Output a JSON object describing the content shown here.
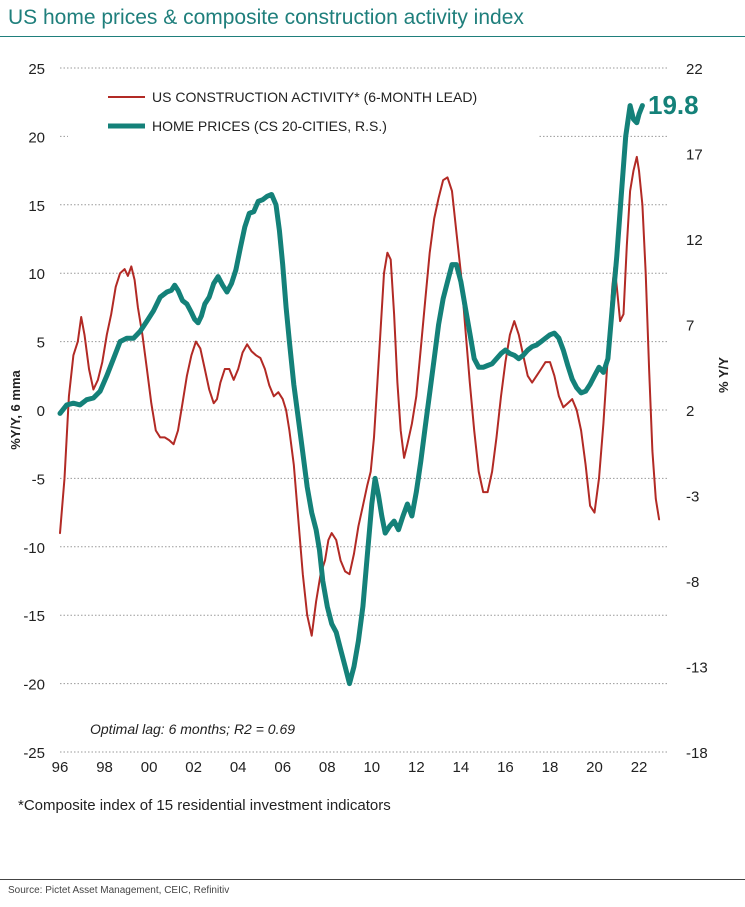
{
  "title": "US home prices & composite construction activity index",
  "footnote": "*Composite index of 15 residential investment indicators",
  "source": "Source: Pictet Asset Management, CEIC, Refinitiv",
  "annotation": "Optimal lag: 6 months;  R2 = 0.69",
  "callout": "19.8",
  "colors": {
    "construction": "#b22a25",
    "home_prices": "#148179",
    "callout": "#148179",
    "title": "#1f7f7c",
    "grid": "#9a9a9a"
  },
  "chart_data": {
    "type": "line",
    "ylabel_left": "%Y/Y, 6 mma",
    "ylabel_right": "% Y/Y",
    "ylim_left": [
      -25,
      25
    ],
    "ylim_right": [
      -18,
      22
    ],
    "yticks_left": [
      25,
      20,
      15,
      10,
      5,
      0,
      -5,
      -10,
      -15,
      -20,
      -25
    ],
    "yticks_right": [
      22,
      17,
      12,
      7,
      2,
      -3,
      -8,
      -13,
      -18
    ],
    "xlim": [
      1996,
      2023.3
    ],
    "xticks": [
      "96",
      "98",
      "00",
      "02",
      "04",
      "06",
      "08",
      "10",
      "12",
      "14",
      "16",
      "18",
      "20",
      "22"
    ],
    "grid": "horizontal",
    "legend_position": "top-left",
    "series": [
      {
        "name": "US CONSTRUCTION ACTIVITY* (6-MONTH LEAD)",
        "axis": "left",
        "points": [
          [
            1996.0,
            -9.0
          ],
          [
            1996.2,
            -5.0
          ],
          [
            1996.4,
            1.0
          ],
          [
            1996.6,
            4.0
          ],
          [
            1996.8,
            5.0
          ],
          [
            1996.95,
            6.8
          ],
          [
            1997.1,
            5.5
          ],
          [
            1997.3,
            3.0
          ],
          [
            1997.5,
            1.5
          ],
          [
            1997.7,
            2.2
          ],
          [
            1997.9,
            3.5
          ],
          [
            1998.1,
            5.5
          ],
          [
            1998.3,
            7.0
          ],
          [
            1998.5,
            9.0
          ],
          [
            1998.7,
            10.0
          ],
          [
            1998.9,
            10.3
          ],
          [
            1999.05,
            9.8
          ],
          [
            1999.2,
            10.5
          ],
          [
            1999.35,
            9.5
          ],
          [
            1999.5,
            7.5
          ],
          [
            1999.7,
            5.5
          ],
          [
            1999.9,
            3.0
          ],
          [
            2000.1,
            0.5
          ],
          [
            2000.3,
            -1.5
          ],
          [
            2000.5,
            -2.0
          ],
          [
            2000.7,
            -2.0
          ],
          [
            2000.9,
            -2.2
          ],
          [
            2001.1,
            -2.5
          ],
          [
            2001.3,
            -1.5
          ],
          [
            2001.5,
            0.5
          ],
          [
            2001.7,
            2.5
          ],
          [
            2001.9,
            4.0
          ],
          [
            2002.1,
            5.0
          ],
          [
            2002.3,
            4.5
          ],
          [
            2002.5,
            3.0
          ],
          [
            2002.7,
            1.5
          ],
          [
            2002.9,
            0.5
          ],
          [
            2003.05,
            0.8
          ],
          [
            2003.2,
            2.0
          ],
          [
            2003.4,
            3.0
          ],
          [
            2003.6,
            3.0
          ],
          [
            2003.8,
            2.2
          ],
          [
            2004.0,
            3.0
          ],
          [
            2004.2,
            4.2
          ],
          [
            2004.4,
            4.8
          ],
          [
            2004.6,
            4.3
          ],
          [
            2004.8,
            4.0
          ],
          [
            2005.0,
            3.8
          ],
          [
            2005.2,
            3.0
          ],
          [
            2005.4,
            1.8
          ],
          [
            2005.6,
            1.0
          ],
          [
            2005.8,
            1.3
          ],
          [
            2006.0,
            0.8
          ],
          [
            2006.15,
            0.0
          ],
          [
            2006.3,
            -1.5
          ],
          [
            2006.5,
            -4.0
          ],
          [
            2006.7,
            -8.0
          ],
          [
            2006.9,
            -12.0
          ],
          [
            2007.1,
            -15.0
          ],
          [
            2007.3,
            -16.5
          ],
          [
            2007.5,
            -14.0
          ],
          [
            2007.7,
            -12.0
          ],
          [
            2007.9,
            -11.0
          ],
          [
            2008.05,
            -9.5
          ],
          [
            2008.2,
            -9.0
          ],
          [
            2008.4,
            -9.5
          ],
          [
            2008.6,
            -11.0
          ],
          [
            2008.8,
            -11.8
          ],
          [
            2009.0,
            -12.0
          ],
          [
            2009.2,
            -10.5
          ],
          [
            2009.4,
            -8.5
          ],
          [
            2009.6,
            -7.0
          ],
          [
            2009.8,
            -5.5
          ],
          [
            2009.95,
            -4.5
          ],
          [
            2010.1,
            -2.0
          ],
          [
            2010.25,
            2.0
          ],
          [
            2010.4,
            6.0
          ],
          [
            2010.55,
            10.0
          ],
          [
            2010.7,
            11.5
          ],
          [
            2010.85,
            11.0
          ],
          [
            2011.0,
            7.0
          ],
          [
            2011.15,
            2.0
          ],
          [
            2011.3,
            -1.5
          ],
          [
            2011.45,
            -3.5
          ],
          [
            2011.6,
            -2.5
          ],
          [
            2011.8,
            -1.0
          ],
          [
            2012.0,
            1.0
          ],
          [
            2012.2,
            4.5
          ],
          [
            2012.4,
            8.0
          ],
          [
            2012.6,
            11.5
          ],
          [
            2012.8,
            14.0
          ],
          [
            2013.0,
            15.5
          ],
          [
            2013.2,
            16.8
          ],
          [
            2013.4,
            17.0
          ],
          [
            2013.6,
            16.0
          ],
          [
            2013.8,
            13.0
          ],
          [
            2014.0,
            10.0
          ],
          [
            2014.2,
            6.0
          ],
          [
            2014.4,
            2.0
          ],
          [
            2014.6,
            -1.5
          ],
          [
            2014.8,
            -4.5
          ],
          [
            2015.0,
            -6.0
          ],
          [
            2015.2,
            -6.0
          ],
          [
            2015.4,
            -4.5
          ],
          [
            2015.6,
            -2.0
          ],
          [
            2015.8,
            1.0
          ],
          [
            2016.0,
            3.5
          ],
          [
            2016.2,
            5.5
          ],
          [
            2016.4,
            6.5
          ],
          [
            2016.6,
            5.5
          ],
          [
            2016.8,
            4.0
          ],
          [
            2017.0,
            2.5
          ],
          [
            2017.2,
            2.0
          ],
          [
            2017.4,
            2.5
          ],
          [
            2017.6,
            3.0
          ],
          [
            2017.8,
            3.5
          ],
          [
            2018.0,
            3.5
          ],
          [
            2018.2,
            2.5
          ],
          [
            2018.4,
            1.0
          ],
          [
            2018.6,
            0.2
          ],
          [
            2018.8,
            0.5
          ],
          [
            2019.0,
            0.8
          ],
          [
            2019.2,
            0.0
          ],
          [
            2019.4,
            -1.5
          ],
          [
            2019.6,
            -4.0
          ],
          [
            2019.8,
            -7.0
          ],
          [
            2020.0,
            -7.5
          ],
          [
            2020.2,
            -5.0
          ],
          [
            2020.4,
            -1.0
          ],
          [
            2020.6,
            4.0
          ],
          [
            2020.8,
            9.0
          ],
          [
            2020.9,
            10.5
          ],
          [
            2021.0,
            9.0
          ],
          [
            2021.15,
            6.5
          ],
          [
            2021.3,
            7.0
          ],
          [
            2021.45,
            12.0
          ],
          [
            2021.6,
            16.0
          ],
          [
            2021.75,
            17.5
          ],
          [
            2021.9,
            18.5
          ],
          [
            2022.0,
            17.5
          ],
          [
            2022.15,
            15.0
          ],
          [
            2022.3,
            10.0
          ],
          [
            2022.45,
            3.0
          ],
          [
            2022.6,
            -3.0
          ],
          [
            2022.75,
            -6.5
          ],
          [
            2022.9,
            -8.0
          ]
        ]
      },
      {
        "name": "HOME PRICES (CS 20-CITIES, R.S.)",
        "axis": "right",
        "points": [
          [
            1996.0,
            1.8
          ],
          [
            1996.3,
            2.3
          ],
          [
            1996.6,
            2.4
          ],
          [
            1996.9,
            2.3
          ],
          [
            1997.2,
            2.6
          ],
          [
            1997.5,
            2.7
          ],
          [
            1997.8,
            3.1
          ],
          [
            1998.1,
            4.0
          ],
          [
            1998.4,
            5.0
          ],
          [
            1998.7,
            6.0
          ],
          [
            1999.0,
            6.2
          ],
          [
            1999.3,
            6.2
          ],
          [
            1999.6,
            6.6
          ],
          [
            1999.9,
            7.2
          ],
          [
            2000.2,
            7.8
          ],
          [
            2000.5,
            8.6
          ],
          [
            2000.8,
            8.9
          ],
          [
            2001.0,
            9.0
          ],
          [
            2001.15,
            9.3
          ],
          [
            2001.3,
            9.0
          ],
          [
            2001.5,
            8.4
          ],
          [
            2001.7,
            8.2
          ],
          [
            2001.9,
            7.7
          ],
          [
            2002.05,
            7.3
          ],
          [
            2002.2,
            7.1
          ],
          [
            2002.35,
            7.5
          ],
          [
            2002.5,
            8.2
          ],
          [
            2002.7,
            8.6
          ],
          [
            2002.9,
            9.4
          ],
          [
            2003.1,
            9.8
          ],
          [
            2003.3,
            9.3
          ],
          [
            2003.5,
            8.9
          ],
          [
            2003.7,
            9.4
          ],
          [
            2003.9,
            10.2
          ],
          [
            2004.1,
            11.5
          ],
          [
            2004.3,
            12.7
          ],
          [
            2004.5,
            13.5
          ],
          [
            2004.7,
            13.6
          ],
          [
            2004.9,
            14.2
          ],
          [
            2005.1,
            14.3
          ],
          [
            2005.3,
            14.5
          ],
          [
            2005.5,
            14.6
          ],
          [
            2005.7,
            14.0
          ],
          [
            2005.85,
            12.5
          ],
          [
            2006.0,
            10.5
          ],
          [
            2006.15,
            8.0
          ],
          [
            2006.3,
            6.0
          ],
          [
            2006.5,
            3.5
          ],
          [
            2006.7,
            1.5
          ],
          [
            2006.9,
            -0.5
          ],
          [
            2007.1,
            -2.5
          ],
          [
            2007.3,
            -4.0
          ],
          [
            2007.5,
            -5.0
          ],
          [
            2007.65,
            -6.2
          ],
          [
            2007.8,
            -8.0
          ],
          [
            2008.0,
            -9.5
          ],
          [
            2008.2,
            -10.5
          ],
          [
            2008.4,
            -11.0
          ],
          [
            2008.6,
            -12.0
          ],
          [
            2008.8,
            -13.0
          ],
          [
            2009.0,
            -14.0
          ],
          [
            2009.2,
            -13.0
          ],
          [
            2009.4,
            -11.5
          ],
          [
            2009.6,
            -9.5
          ],
          [
            2009.8,
            -6.5
          ],
          [
            2010.0,
            -3.5
          ],
          [
            2010.15,
            -2.0
          ],
          [
            2010.3,
            -3.0
          ],
          [
            2010.45,
            -4.2
          ],
          [
            2010.6,
            -5.2
          ],
          [
            2010.8,
            -4.8
          ],
          [
            2011.0,
            -4.5
          ],
          [
            2011.2,
            -5.0
          ],
          [
            2011.4,
            -4.2
          ],
          [
            2011.6,
            -3.5
          ],
          [
            2011.8,
            -4.2
          ],
          [
            2012.0,
            -2.8
          ],
          [
            2012.2,
            -1.0
          ],
          [
            2012.4,
            1.0
          ],
          [
            2012.6,
            3.0
          ],
          [
            2012.8,
            5.0
          ],
          [
            2013.0,
            7.0
          ],
          [
            2013.2,
            8.5
          ],
          [
            2013.4,
            9.5
          ],
          [
            2013.6,
            10.5
          ],
          [
            2013.8,
            10.5
          ],
          [
            2014.0,
            9.5
          ],
          [
            2014.2,
            8.0
          ],
          [
            2014.4,
            6.5
          ],
          [
            2014.6,
            5.0
          ],
          [
            2014.8,
            4.5
          ],
          [
            2015.0,
            4.5
          ],
          [
            2015.2,
            4.6
          ],
          [
            2015.4,
            4.7
          ],
          [
            2015.6,
            5.0
          ],
          [
            2015.8,
            5.3
          ],
          [
            2016.0,
            5.5
          ],
          [
            2016.2,
            5.3
          ],
          [
            2016.4,
            5.2
          ],
          [
            2016.6,
            5.0
          ],
          [
            2016.8,
            5.2
          ],
          [
            2017.0,
            5.5
          ],
          [
            2017.2,
            5.7
          ],
          [
            2017.4,
            5.8
          ],
          [
            2017.6,
            6.0
          ],
          [
            2017.8,
            6.2
          ],
          [
            2018.0,
            6.4
          ],
          [
            2018.2,
            6.5
          ],
          [
            2018.4,
            6.2
          ],
          [
            2018.6,
            5.5
          ],
          [
            2018.8,
            4.6
          ],
          [
            2019.0,
            3.8
          ],
          [
            2019.2,
            3.3
          ],
          [
            2019.4,
            3.0
          ],
          [
            2019.6,
            3.1
          ],
          [
            2019.8,
            3.5
          ],
          [
            2020.0,
            4.0
          ],
          [
            2020.2,
            4.5
          ],
          [
            2020.4,
            4.2
          ],
          [
            2020.6,
            5.0
          ],
          [
            2020.8,
            8.0
          ],
          [
            2021.0,
            11.0
          ],
          [
            2021.2,
            14.5
          ],
          [
            2021.4,
            18.0
          ],
          [
            2021.6,
            19.8
          ],
          [
            2021.75,
            19.0
          ],
          [
            2021.9,
            18.8
          ],
          [
            2022.0,
            19.3
          ],
          [
            2022.15,
            19.8
          ]
        ]
      }
    ]
  }
}
